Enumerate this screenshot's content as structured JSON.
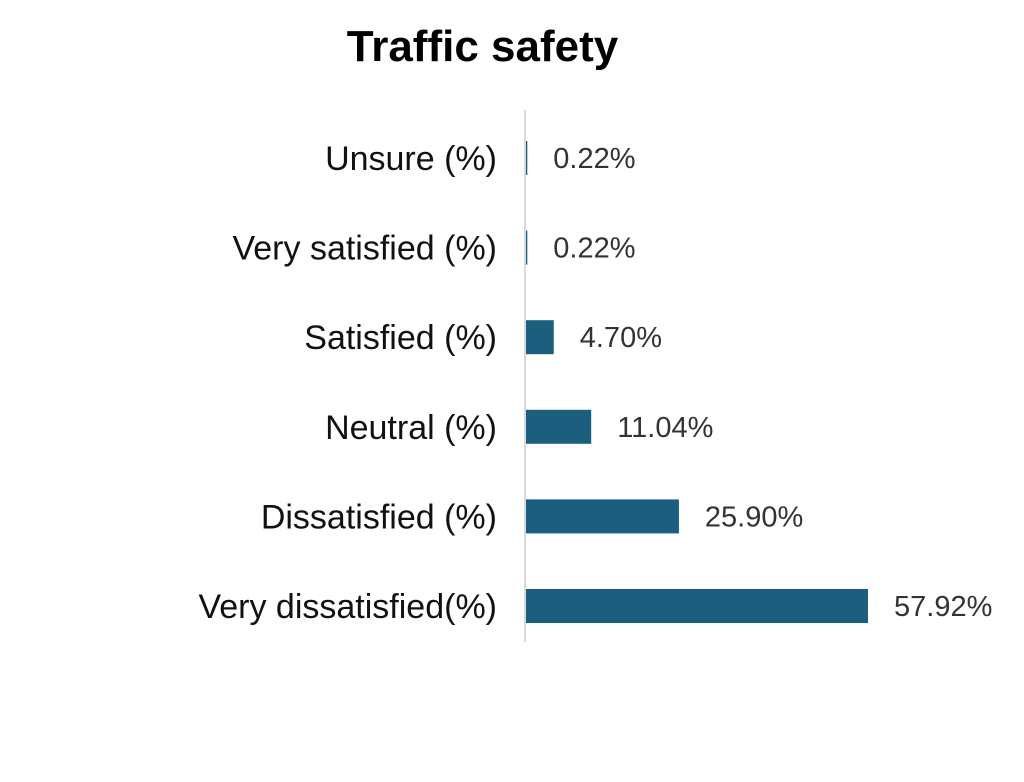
{
  "chart_data": {
    "type": "bar",
    "orientation": "horizontal",
    "title": "Traffic safety",
    "xlabel": "",
    "ylabel": "",
    "categories": [
      "Unsure (%)",
      "Very satisfied (%)",
      "Satisfied (%)",
      "Neutral (%)",
      "Dissatisfied (%)",
      "Very dissatisfied(%)"
    ],
    "values": [
      0.22,
      0.22,
      4.7,
      11.04,
      25.9,
      57.92
    ],
    "data_labels": [
      "0.22%",
      "0.22%",
      "4.70%",
      "11.04%",
      "25.90%",
      "57.92%"
    ],
    "xlim": [
      0,
      57.92
    ],
    "grid": false,
    "legend": "none",
    "colors": {
      "bar": "#1b5e7e",
      "axis": "#d9d9d9"
    }
  }
}
